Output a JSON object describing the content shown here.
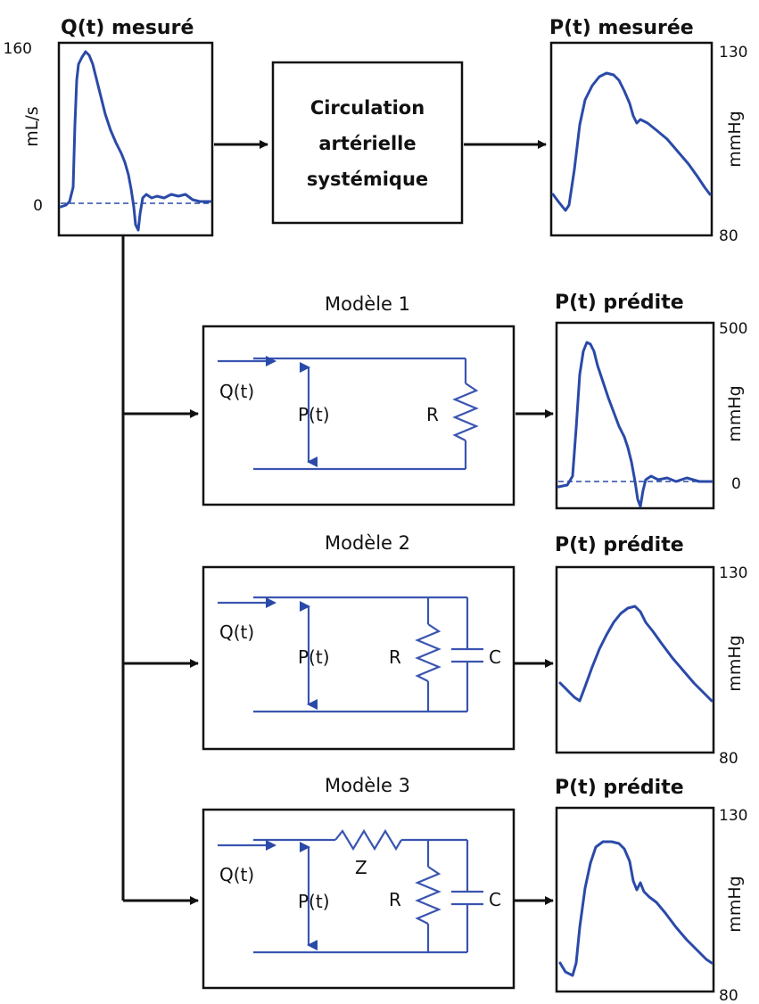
{
  "flow_panel": {
    "title": "Q(t) mesuré",
    "unit": "mL/s",
    "y_max": "160",
    "y_min": "0"
  },
  "system_box": {
    "line1": "Circulation",
    "line2": "artérielle",
    "line3": "systémique"
  },
  "measured_pressure": {
    "title": "P(t) mesurée",
    "unit": "mmHg",
    "y_max": "130",
    "y_min": "80"
  },
  "models": [
    {
      "title": "Modèle 1",
      "input": "Q(t)",
      "pressure": "P(t)",
      "R": "R",
      "output": {
        "title": "P(t) prédite",
        "unit": "mmHg",
        "y_max": "500",
        "y_min": "0"
      }
    },
    {
      "title": "Modèle 2",
      "input": "Q(t)",
      "pressure": "P(t)",
      "R": "R",
      "C": "C",
      "output": {
        "title": "P(t) prédite",
        "unit": "mmHg",
        "y_max": "130",
        "y_min": "80"
      }
    },
    {
      "title": "Modèle 3",
      "input": "Q(t)",
      "pressure": "P(t)",
      "Z": "Z",
      "R": "R",
      "C": "C",
      "output": {
        "title": "P(t) prédite",
        "unit": "mmHg",
        "y_max": "130",
        "y_min": "80"
      }
    }
  ],
  "colors": {
    "trace": "#2a4aa8",
    "wire": "#3a55b0",
    "frame": "#111111"
  }
}
